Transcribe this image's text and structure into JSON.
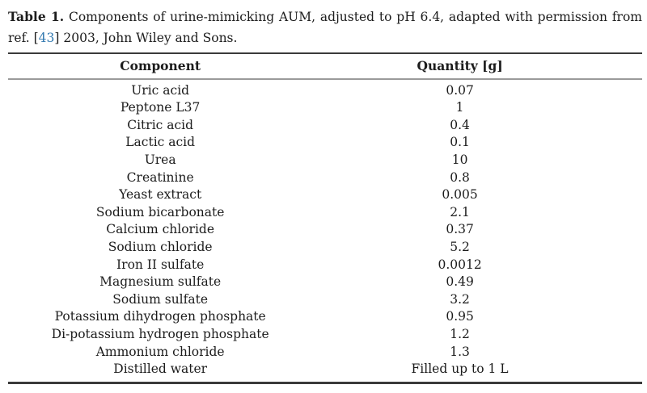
{
  "caption": {
    "label": "Table 1.",
    "text_after_label": " Components of urine-mimicking AUM, adjusted to pH 6.4, adapted with permission from ",
    "line2_prefix": "ref. [",
    "ref_number": "43",
    "line2_suffix": "] 2003, John Wiley and Sons."
  },
  "colors": {
    "text": "#1c1c1c",
    "link_blue": "#3279b0",
    "rule_dark": "#3a3a3a",
    "rule_light": "#9a9a9a",
    "page_bg": "#ffffff"
  },
  "table": {
    "headers": {
      "component": "Component",
      "quantity": "Quantity [g]"
    },
    "rows": [
      {
        "component": "Uric acid",
        "quantity": "0.07"
      },
      {
        "component": "Peptone L37",
        "quantity": "1"
      },
      {
        "component": "Citric acid",
        "quantity": "0.4"
      },
      {
        "component": "Lactic acid",
        "quantity": "0.1"
      },
      {
        "component": "Urea",
        "quantity": "10"
      },
      {
        "component": "Creatinine",
        "quantity": "0.8"
      },
      {
        "component": "Yeast extract",
        "quantity": "0.005"
      },
      {
        "component": "Sodium bicarbonate",
        "quantity": "2.1"
      },
      {
        "component": "Calcium chloride",
        "quantity": "0.37"
      },
      {
        "component": "Sodium chloride",
        "quantity": "5.2"
      },
      {
        "component": "Iron II sulfate",
        "quantity": "0.0012"
      },
      {
        "component": "Magnesium sulfate",
        "quantity": "0.49"
      },
      {
        "component": "Sodium sulfate",
        "quantity": "3.2"
      },
      {
        "component": "Potassium dihydrogen phosphate",
        "quantity": "0.95"
      },
      {
        "component": "Di-potassium hydrogen phosphate",
        "quantity": "1.2"
      },
      {
        "component": "Ammonium chloride",
        "quantity": "1.3"
      },
      {
        "component": "Distilled water",
        "quantity": "Filled up to 1 L"
      }
    ]
  }
}
